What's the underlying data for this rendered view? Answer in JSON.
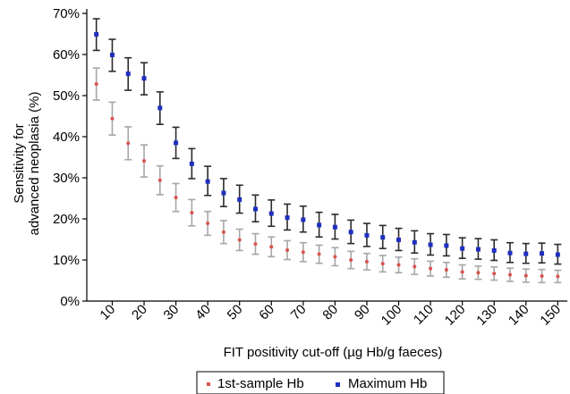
{
  "chart_data": {
    "type": "scatter",
    "title": "",
    "xlabel": "FIT positivity cut-off (µg Hb/g faeces)",
    "ylabel_lines": [
      "Sensitivity for",
      "advanced neoplasia (%)"
    ],
    "x": [
      5,
      10,
      15,
      20,
      25,
      30,
      35,
      40,
      45,
      50,
      55,
      60,
      65,
      70,
      75,
      80,
      85,
      90,
      95,
      100,
      105,
      110,
      115,
      120,
      125,
      130,
      135,
      140,
      145,
      150
    ],
    "xticks": [
      10,
      20,
      30,
      40,
      50,
      60,
      70,
      80,
      90,
      100,
      110,
      120,
      130,
      140,
      150
    ],
    "yticks": [
      "0%",
      "10%",
      "20%",
      "30%",
      "40%",
      "50%",
      "60%",
      "70%"
    ],
    "xlim": [
      2,
      153
    ],
    "ylim": [
      0,
      70
    ],
    "grid": false,
    "legend_position": "bottom",
    "series": [
      {
        "name": "1st-sample Hb",
        "marker_color": "#d9534f",
        "errorbar_color": "#a6a6a6",
        "values": [
          52.8,
          44.4,
          38.4,
          34.1,
          29.4,
          25.2,
          21.5,
          18.9,
          16.8,
          14.9,
          13.9,
          13.2,
          12.4,
          11.9,
          11.4,
          10.8,
          10.0,
          9.6,
          9.1,
          8.8,
          8.4,
          7.9,
          7.6,
          7.1,
          6.9,
          6.7,
          6.4,
          6.2,
          6.1,
          6.0
        ],
        "lower": [
          48.9,
          40.4,
          34.4,
          30.2,
          25.9,
          21.8,
          18.3,
          16.0,
          14.0,
          12.3,
          11.4,
          10.8,
          10.1,
          9.6,
          9.2,
          8.6,
          7.9,
          7.6,
          7.1,
          6.9,
          6.5,
          6.1,
          5.8,
          5.4,
          5.3,
          5.1,
          4.8,
          4.6,
          4.5,
          4.5
        ],
        "upper": [
          56.7,
          48.4,
          42.4,
          38.0,
          32.9,
          28.6,
          24.7,
          21.8,
          19.6,
          17.5,
          16.4,
          15.6,
          14.7,
          14.2,
          13.6,
          13.0,
          12.1,
          11.6,
          11.1,
          10.7,
          10.3,
          9.7,
          9.4,
          8.8,
          8.5,
          8.3,
          8.0,
          7.8,
          7.7,
          7.5
        ]
      },
      {
        "name": "Maximum Hb",
        "marker_color": "#1f2fbf",
        "errorbar_color": "#2b2b2b",
        "values": [
          64.9,
          59.9,
          55.3,
          54.2,
          47.0,
          38.5,
          33.4,
          29.1,
          26.3,
          24.7,
          22.4,
          21.3,
          20.3,
          19.8,
          18.5,
          18.0,
          16.8,
          16.0,
          15.5,
          14.9,
          14.3,
          13.7,
          13.5,
          12.8,
          12.6,
          12.3,
          11.7,
          11.5,
          11.6,
          11.3
        ],
        "lower": [
          61.0,
          55.9,
          51.3,
          50.2,
          43.0,
          34.7,
          29.8,
          25.7,
          23.0,
          21.4,
          19.3,
          18.2,
          17.3,
          16.8,
          15.6,
          15.1,
          14.0,
          13.3,
          12.8,
          12.3,
          11.7,
          11.2,
          11.0,
          10.4,
          10.2,
          9.9,
          9.4,
          9.2,
          9.3,
          9.0
        ],
        "upper": [
          68.7,
          63.7,
          59.2,
          58.0,
          50.9,
          42.3,
          37.1,
          32.8,
          29.8,
          28.2,
          25.8,
          24.6,
          23.6,
          23.1,
          21.6,
          21.1,
          19.7,
          18.9,
          18.4,
          17.7,
          17.1,
          16.4,
          16.2,
          15.4,
          15.2,
          14.9,
          14.2,
          14.0,
          14.1,
          13.8
        ]
      }
    ]
  }
}
